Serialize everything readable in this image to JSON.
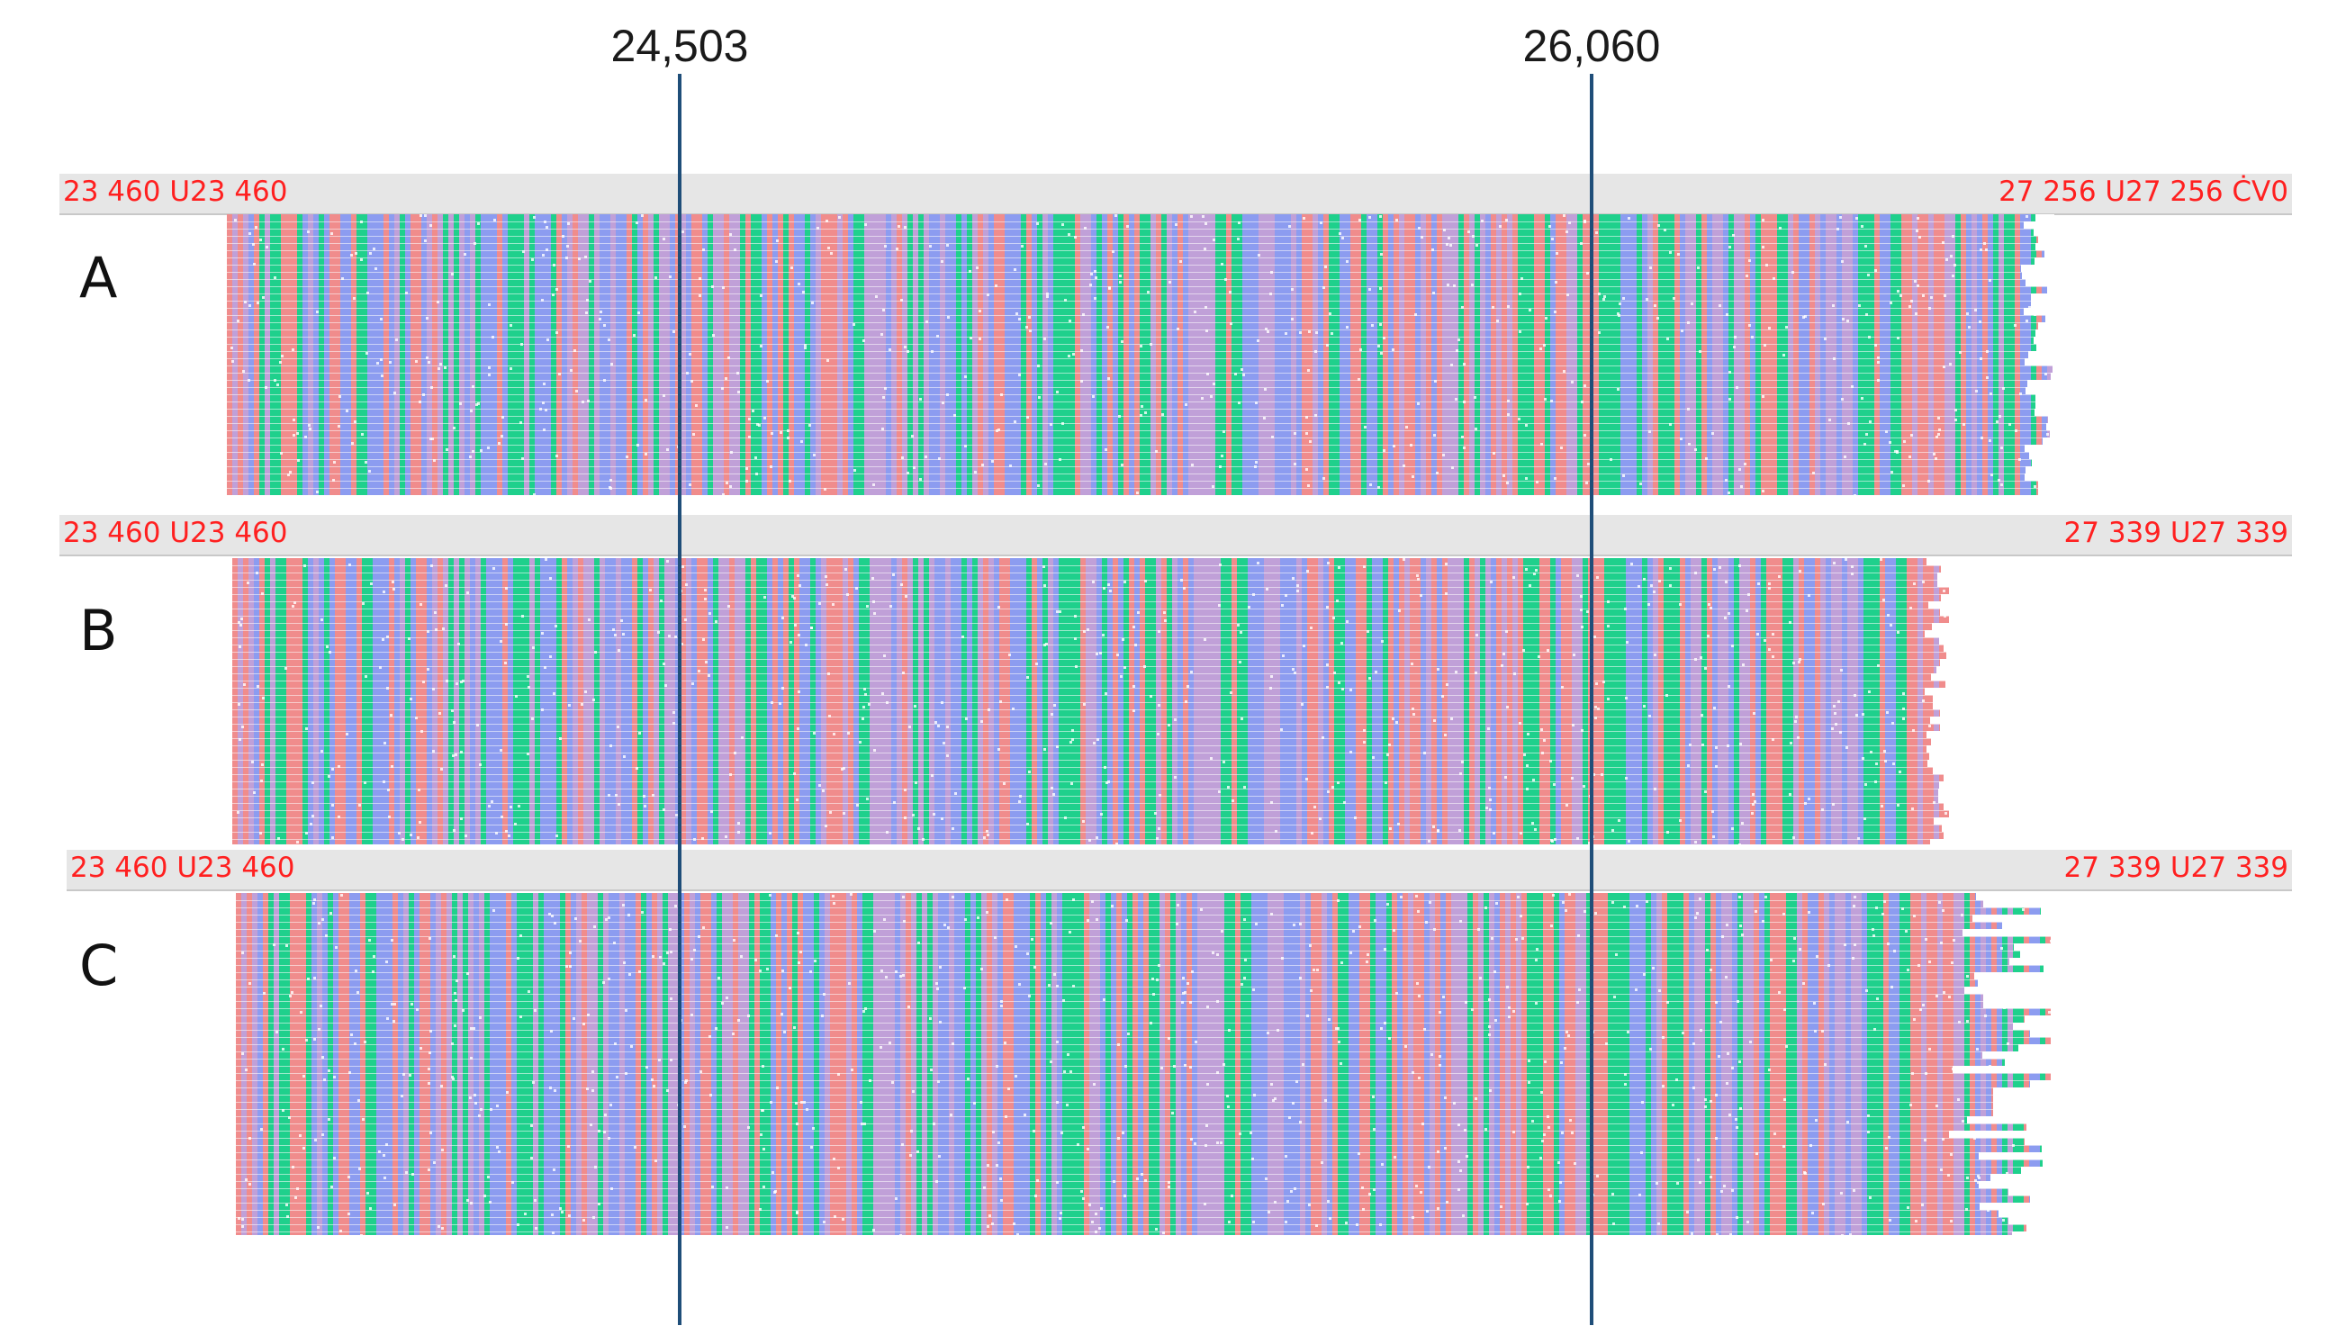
{
  "markers": [
    {
      "label": "24,503"
    },
    {
      "label": "26,060"
    }
  ],
  "panels": [
    {
      "letter": "A",
      "left_coord": "23 460 U23 460",
      "right_coord": "27 256 U27 256 ĊV0"
    },
    {
      "letter": "B",
      "left_coord": "23 460 U23 460",
      "right_coord": "27 339 U27 339"
    },
    {
      "letter": "C",
      "left_coord": "23 460 U23 460",
      "right_coord": "27 339 U27 339"
    }
  ],
  "colors": {
    "base_a": "#1fd08c",
    "base_c": "#8c9cf0",
    "base_g": "#c0a0d8",
    "base_t": "#f08c8c",
    "coord_text": "#ff2020",
    "marker_line": "#1f4e79"
  }
}
